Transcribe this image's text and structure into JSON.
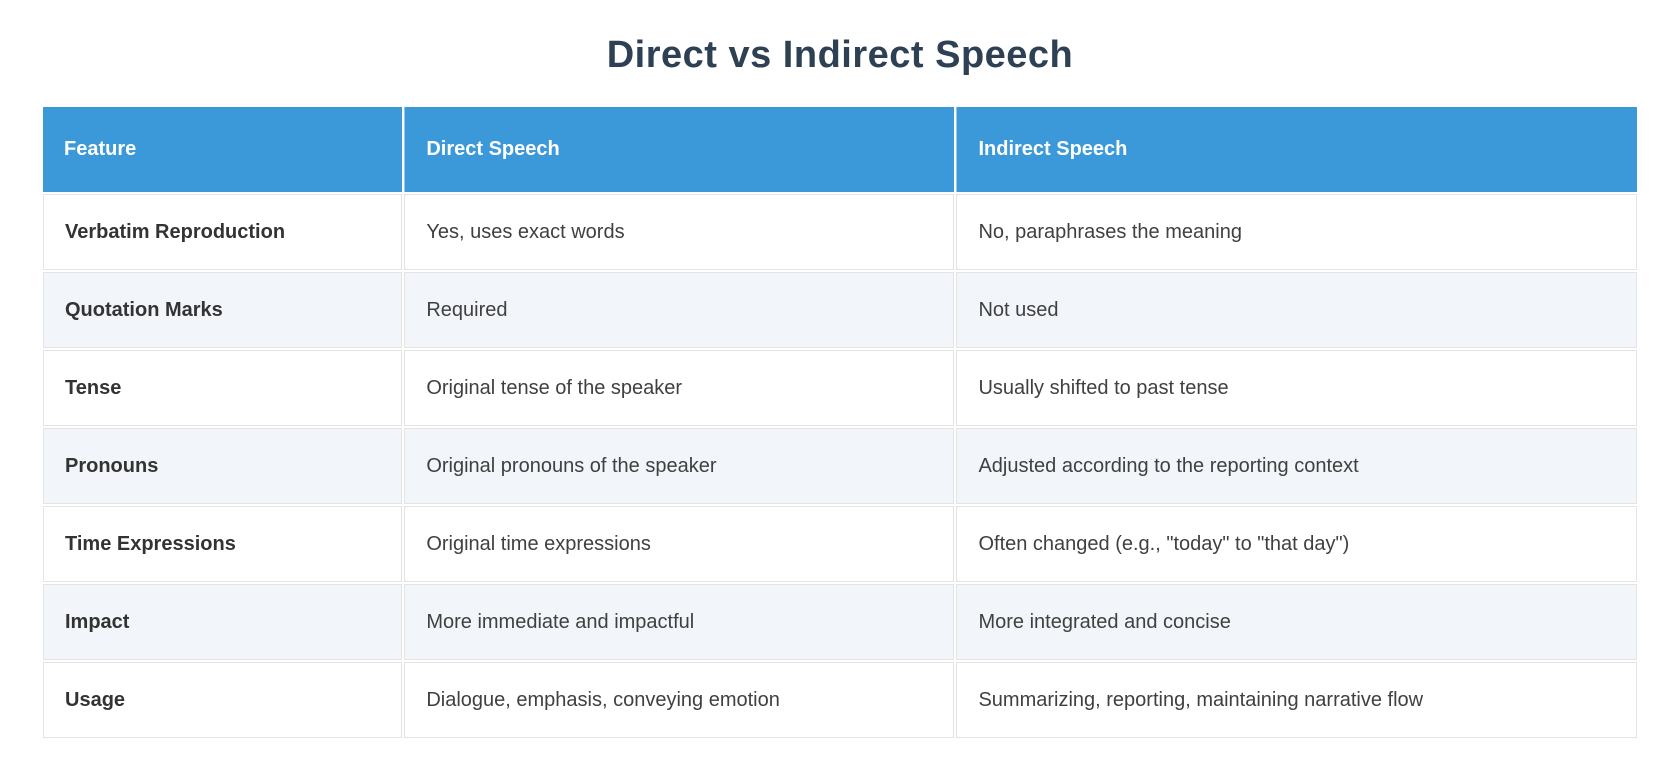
{
  "page": {
    "title": "Direct vs Indirect Speech"
  },
  "colors": {
    "header_bg": "#3b98d9",
    "header_text": "#ffffff",
    "title_text": "#2e4053",
    "alt_row_bg": "#f2f5f9",
    "row_bg": "#ffffff",
    "cell_border": "#e4e4e4",
    "body_text": "#404040",
    "feature_text": "#333333"
  },
  "table": {
    "headers": [
      "Feature",
      "Direct Speech",
      "Indirect Speech"
    ],
    "rows": [
      {
        "feature": "Verbatim Reproduction",
        "direct": "Yes, uses exact words",
        "indirect": "No, paraphrases the meaning"
      },
      {
        "feature": "Quotation Marks",
        "direct": "Required",
        "indirect": "Not used"
      },
      {
        "feature": "Tense",
        "direct": "Original tense of the speaker",
        "indirect": "Usually shifted to past tense"
      },
      {
        "feature": "Pronouns",
        "direct": "Original pronouns of the speaker",
        "indirect": "Adjusted according to the reporting context"
      },
      {
        "feature": "Time Expressions",
        "direct": "Original time expressions",
        "indirect": "Often changed (e.g., \"today\" to \"that day\")"
      },
      {
        "feature": "Impact",
        "direct": "More immediate and impactful",
        "indirect": "More integrated and concise"
      },
      {
        "feature": "Usage",
        "direct": "Dialogue, emphasis, conveying emotion",
        "indirect": "Summarizing, reporting, maintaining narrative flow"
      }
    ]
  }
}
